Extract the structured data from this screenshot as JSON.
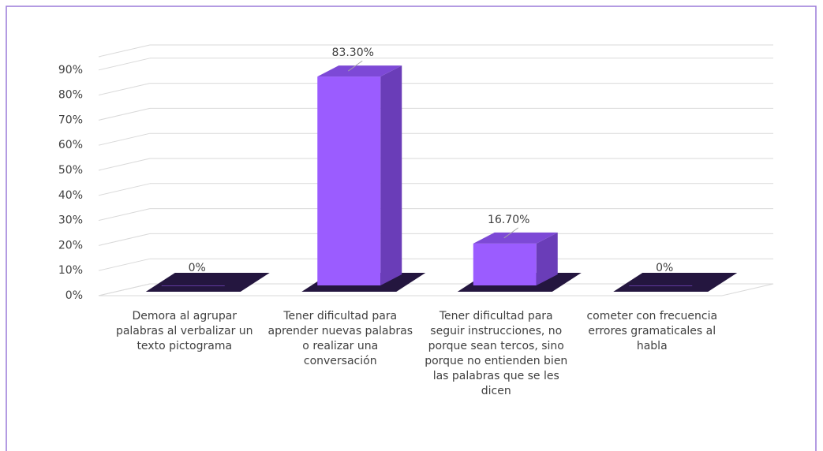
{
  "chart_data": {
    "type": "bar3d",
    "categories": [
      "Demora al agrupar palabras al verbalizar un texto pictograma",
      "Tener dificultad para aprender nuevas palabras o realizar una conversación",
      "Tener dificultad para seguir instrucciones, no porque sean tercos, sino porque no entienden bien las palabras que se les dicen",
      "cometer con frecuencia errores gramaticales al habla"
    ],
    "values": [
      0,
      83.3,
      16.7,
      0
    ],
    "value_labels": [
      "0%",
      "83.30%",
      "16.70%",
      "0%"
    ],
    "color": "#9b5cff",
    "ylim": [
      0,
      100
    ],
    "yticks": [
      {
        "value": 0,
        "label": "0%"
      },
      {
        "value": 10,
        "label": "10%"
      },
      {
        "value": 20,
        "label": "20%"
      },
      {
        "value": 30,
        "label": "30%"
      },
      {
        "value": 40,
        "label": "40%"
      },
      {
        "value": 50,
        "label": "50%"
      },
      {
        "value": 60,
        "label": "60%"
      },
      {
        "value": 70,
        "label": "70%"
      },
      {
        "value": 80,
        "label": "80%"
      },
      {
        "value": 90,
        "label": "90%"
      }
    ],
    "grid": true
  }
}
